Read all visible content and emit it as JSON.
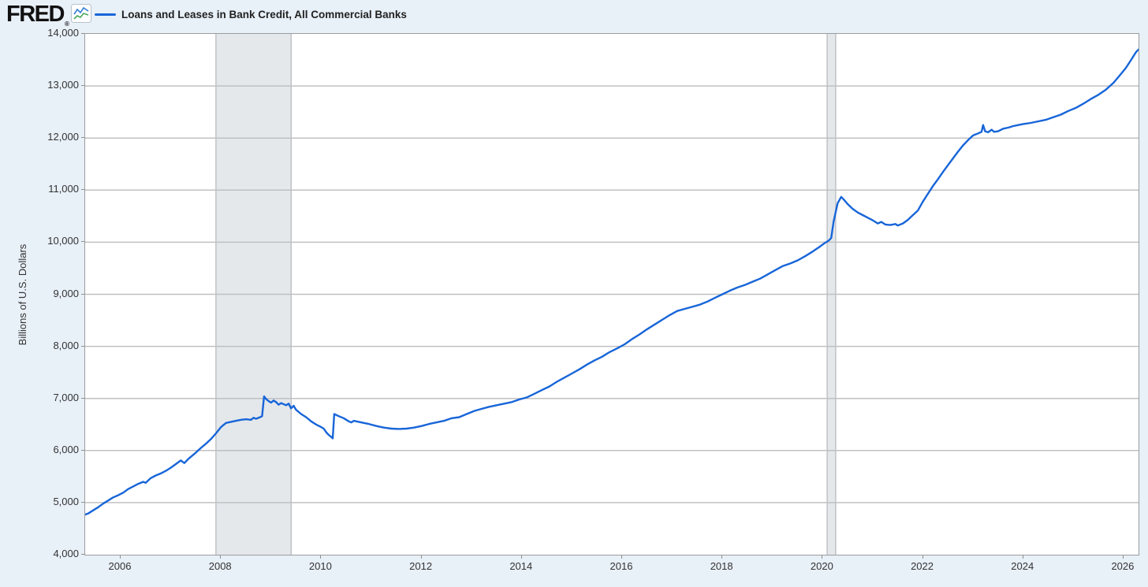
{
  "header": {
    "logo_text": "FRED",
    "logo_registered": "®",
    "logo_icon": "fred-sparkline-icon",
    "legend": {
      "label": "Loans and Leases in Bank Credit, All Commercial Banks",
      "color": "#1765d8"
    }
  },
  "chart_data": {
    "type": "line",
    "title": "Loans and Leases in Bank Credit, All Commercial Banks",
    "xlabel": "",
    "ylabel": "Billions of U.S. Dollars",
    "x_range": [
      2005.292,
      2026.3
    ],
    "ylim": [
      4000,
      14000
    ],
    "grid": "horizontal",
    "legend_position": "top-left",
    "colors": {
      "line": "#1765d8",
      "grid": "#c0c0c0",
      "plot_border": "#9c9c9c",
      "recession_band_fill": "#e4e8eb",
      "recession_band_edge": "#b7bbc0",
      "page_background": "#e8f0f8",
      "plot_background": "#ffffff",
      "text": "#333333"
    },
    "y_ticks": [
      {
        "value": 14000,
        "label": "14,000"
      },
      {
        "value": 13000,
        "label": "13,000"
      },
      {
        "value": 12000,
        "label": "12,000"
      },
      {
        "value": 11000,
        "label": "11,000"
      },
      {
        "value": 10000,
        "label": "10,000"
      },
      {
        "value": 9000,
        "label": "9,000"
      },
      {
        "value": 8000,
        "label": "8,000"
      },
      {
        "value": 7000,
        "label": "7,000"
      },
      {
        "value": 6000,
        "label": "6,000"
      },
      {
        "value": 5000,
        "label": "5,000"
      },
      {
        "value": 4000,
        "label": "4,000"
      }
    ],
    "x_ticks": [
      {
        "value": 2006,
        "label": "2006"
      },
      {
        "value": 2008,
        "label": "2008"
      },
      {
        "value": 2010,
        "label": "2010"
      },
      {
        "value": 2012,
        "label": "2012"
      },
      {
        "value": 2014,
        "label": "2014"
      },
      {
        "value": 2016,
        "label": "2016"
      },
      {
        "value": 2018,
        "label": "2018"
      },
      {
        "value": 2020,
        "label": "2020"
      },
      {
        "value": 2022,
        "label": "2022"
      },
      {
        "value": 2024,
        "label": "2024"
      },
      {
        "value": 2026,
        "label": "2026"
      }
    ],
    "recession_bands": [
      {
        "start": 2007.9,
        "end": 2009.4
      },
      {
        "start": 2020.09,
        "end": 2020.26
      }
    ],
    "series": [
      {
        "name": "Loans and Leases in Bank Credit, All Commercial Banks",
        "units": "Billions of U.S. Dollars",
        "color": "#1765d8",
        "points": [
          [
            2005.29,
            4770
          ],
          [
            2005.35,
            4790
          ],
          [
            2005.45,
            4850
          ],
          [
            2005.55,
            4910
          ],
          [
            2005.65,
            4980
          ],
          [
            2005.75,
            5040
          ],
          [
            2005.85,
            5100
          ],
          [
            2005.95,
            5140
          ],
          [
            2006.05,
            5190
          ],
          [
            2006.15,
            5260
          ],
          [
            2006.25,
            5310
          ],
          [
            2006.35,
            5360
          ],
          [
            2006.45,
            5400
          ],
          [
            2006.5,
            5380
          ],
          [
            2006.6,
            5470
          ],
          [
            2006.7,
            5520
          ],
          [
            2006.8,
            5560
          ],
          [
            2006.9,
            5610
          ],
          [
            2007.0,
            5670
          ],
          [
            2007.1,
            5740
          ],
          [
            2007.2,
            5810
          ],
          [
            2007.27,
            5760
          ],
          [
            2007.35,
            5840
          ],
          [
            2007.5,
            5960
          ],
          [
            2007.6,
            6050
          ],
          [
            2007.7,
            6130
          ],
          [
            2007.8,
            6220
          ],
          [
            2007.9,
            6330
          ],
          [
            2008.0,
            6450
          ],
          [
            2008.1,
            6530
          ],
          [
            2008.2,
            6550
          ],
          [
            2008.3,
            6570
          ],
          [
            2008.4,
            6590
          ],
          [
            2008.5,
            6600
          ],
          [
            2008.6,
            6590
          ],
          [
            2008.65,
            6630
          ],
          [
            2008.7,
            6610
          ],
          [
            2008.78,
            6640
          ],
          [
            2008.82,
            6660
          ],
          [
            2008.86,
            7040
          ],
          [
            2008.9,
            6990
          ],
          [
            2008.95,
            6950
          ],
          [
            2009.0,
            6920
          ],
          [
            2009.05,
            6960
          ],
          [
            2009.1,
            6930
          ],
          [
            2009.15,
            6880
          ],
          [
            2009.2,
            6910
          ],
          [
            2009.3,
            6870
          ],
          [
            2009.35,
            6900
          ],
          [
            2009.4,
            6810
          ],
          [
            2009.45,
            6860
          ],
          [
            2009.5,
            6780
          ],
          [
            2009.6,
            6700
          ],
          [
            2009.7,
            6640
          ],
          [
            2009.8,
            6560
          ],
          [
            2009.9,
            6500
          ],
          [
            2010.0,
            6450
          ],
          [
            2010.05,
            6420
          ],
          [
            2010.1,
            6350
          ],
          [
            2010.15,
            6300
          ],
          [
            2010.2,
            6260
          ],
          [
            2010.23,
            6235
          ],
          [
            2010.26,
            6700
          ],
          [
            2010.35,
            6660
          ],
          [
            2010.45,
            6620
          ],
          [
            2010.55,
            6560
          ],
          [
            2010.6,
            6540
          ],
          [
            2010.65,
            6570
          ],
          [
            2010.75,
            6550
          ],
          [
            2010.85,
            6530
          ],
          [
            2010.95,
            6510
          ],
          [
            2011.1,
            6470
          ],
          [
            2011.25,
            6440
          ],
          [
            2011.4,
            6420
          ],
          [
            2011.55,
            6415
          ],
          [
            2011.7,
            6420
          ],
          [
            2011.85,
            6440
          ],
          [
            2012.0,
            6470
          ],
          [
            2012.15,
            6510
          ],
          [
            2012.3,
            6540
          ],
          [
            2012.45,
            6570
          ],
          [
            2012.6,
            6620
          ],
          [
            2012.75,
            6640
          ],
          [
            2012.9,
            6700
          ],
          [
            2013.05,
            6760
          ],
          [
            2013.2,
            6800
          ],
          [
            2013.35,
            6840
          ],
          [
            2013.5,
            6870
          ],
          [
            2013.65,
            6900
          ],
          [
            2013.8,
            6930
          ],
          [
            2013.95,
            6980
          ],
          [
            2014.1,
            7020
          ],
          [
            2014.25,
            7090
          ],
          [
            2014.4,
            7160
          ],
          [
            2014.55,
            7230
          ],
          [
            2014.7,
            7320
          ],
          [
            2014.85,
            7400
          ],
          [
            2015.0,
            7480
          ],
          [
            2015.15,
            7560
          ],
          [
            2015.3,
            7650
          ],
          [
            2015.45,
            7730
          ],
          [
            2015.6,
            7800
          ],
          [
            2015.75,
            7890
          ],
          [
            2015.9,
            7960
          ],
          [
            2016.05,
            8040
          ],
          [
            2016.2,
            8140
          ],
          [
            2016.35,
            8230
          ],
          [
            2016.5,
            8330
          ],
          [
            2016.65,
            8420
          ],
          [
            2016.8,
            8510
          ],
          [
            2016.95,
            8600
          ],
          [
            2017.1,
            8680
          ],
          [
            2017.25,
            8720
          ],
          [
            2017.4,
            8760
          ],
          [
            2017.55,
            8800
          ],
          [
            2017.7,
            8860
          ],
          [
            2017.85,
            8930
          ],
          [
            2018.0,
            9000
          ],
          [
            2018.15,
            9070
          ],
          [
            2018.3,
            9130
          ],
          [
            2018.45,
            9180
          ],
          [
            2018.6,
            9240
          ],
          [
            2018.75,
            9300
          ],
          [
            2018.9,
            9380
          ],
          [
            2019.05,
            9460
          ],
          [
            2019.2,
            9540
          ],
          [
            2019.35,
            9590
          ],
          [
            2019.5,
            9650
          ],
          [
            2019.65,
            9730
          ],
          [
            2019.8,
            9820
          ],
          [
            2019.95,
            9920
          ],
          [
            2020.05,
            9990
          ],
          [
            2020.12,
            10030
          ],
          [
            2020.17,
            10080
          ],
          [
            2020.22,
            10400
          ],
          [
            2020.3,
            10750
          ],
          [
            2020.37,
            10870
          ],
          [
            2020.42,
            10820
          ],
          [
            2020.5,
            10730
          ],
          [
            2020.6,
            10640
          ],
          [
            2020.7,
            10570
          ],
          [
            2020.8,
            10520
          ],
          [
            2020.9,
            10470
          ],
          [
            2021.0,
            10420
          ],
          [
            2021.1,
            10360
          ],
          [
            2021.17,
            10390
          ],
          [
            2021.25,
            10340
          ],
          [
            2021.35,
            10330
          ],
          [
            2021.45,
            10350
          ],
          [
            2021.5,
            10320
          ],
          [
            2021.6,
            10360
          ],
          [
            2021.7,
            10430
          ],
          [
            2021.8,
            10520
          ],
          [
            2021.9,
            10610
          ],
          [
            2022.0,
            10780
          ],
          [
            2022.1,
            10930
          ],
          [
            2022.2,
            11080
          ],
          [
            2022.3,
            11210
          ],
          [
            2022.4,
            11350
          ],
          [
            2022.5,
            11480
          ],
          [
            2022.6,
            11610
          ],
          [
            2022.7,
            11740
          ],
          [
            2022.8,
            11860
          ],
          [
            2022.9,
            11960
          ],
          [
            2023.0,
            12050
          ],
          [
            2023.1,
            12090
          ],
          [
            2023.17,
            12120
          ],
          [
            2023.2,
            12250
          ],
          [
            2023.24,
            12130
          ],
          [
            2023.3,
            12110
          ],
          [
            2023.37,
            12160
          ],
          [
            2023.42,
            12120
          ],
          [
            2023.5,
            12130
          ],
          [
            2023.6,
            12180
          ],
          [
            2023.7,
            12200
          ],
          [
            2023.8,
            12230
          ],
          [
            2023.9,
            12250
          ],
          [
            2024.0,
            12270
          ],
          [
            2024.15,
            12290
          ],
          [
            2024.3,
            12320
          ],
          [
            2024.45,
            12350
          ],
          [
            2024.6,
            12400
          ],
          [
            2024.75,
            12450
          ],
          [
            2024.9,
            12520
          ],
          [
            2025.05,
            12580
          ],
          [
            2025.2,
            12660
          ],
          [
            2025.35,
            12750
          ],
          [
            2025.5,
            12830
          ],
          [
            2025.65,
            12930
          ],
          [
            2025.8,
            13060
          ],
          [
            2025.95,
            13230
          ],
          [
            2026.05,
            13350
          ],
          [
            2026.15,
            13500
          ],
          [
            2026.25,
            13650
          ],
          [
            2026.3,
            13700
          ]
        ]
      }
    ]
  }
}
